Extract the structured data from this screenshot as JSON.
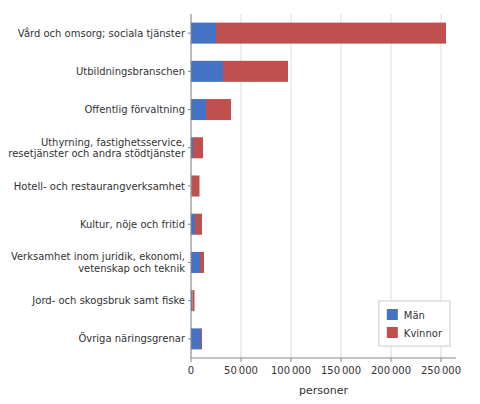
{
  "chart_data": {
    "type": "bar",
    "orientation": "horizontal",
    "stacked": true,
    "categories": [
      "Övriga näringsgrenar",
      "Jord- och skogsbruk samt fiske",
      "Verksamhet inom juridik, ekonomi,\nvetenskap och teknik",
      "Kultur, nöje och fritid",
      "Hotell- och restaurangverksamhet",
      "Uthyrning, fastighetsservice,\nresetjänster och andra stödtjänster",
      "Offentlig förvaltning",
      "Utbildningsbranschen",
      "Vård och omsorg; sociala tjänster"
    ],
    "series": [
      {
        "name": "Män",
        "color": "#4472C4",
        "values": [
          10000,
          1500,
          9000,
          4000,
          500,
          2000,
          15000,
          32000,
          25000
        ]
      },
      {
        "name": "Kvinnor",
        "color": "#C0504D",
        "values": [
          1000,
          2000,
          4000,
          7000,
          8000,
          10000,
          25000,
          65000,
          230000
        ]
      }
    ],
    "xlabel": "personer",
    "xlim": [
      0,
      265000
    ],
    "xticks": [
      0,
      {
        "value": 50000,
        "label": "50 000"
      },
      {
        "value": 100000,
        "label": "100 000"
      },
      {
        "value": 150000,
        "label": "150 000"
      },
      {
        "value": 200000,
        "label": "200 000"
      },
      {
        "value": 250000,
        "label": "250 000"
      }
    ],
    "grid": true,
    "legend": "lower right"
  }
}
